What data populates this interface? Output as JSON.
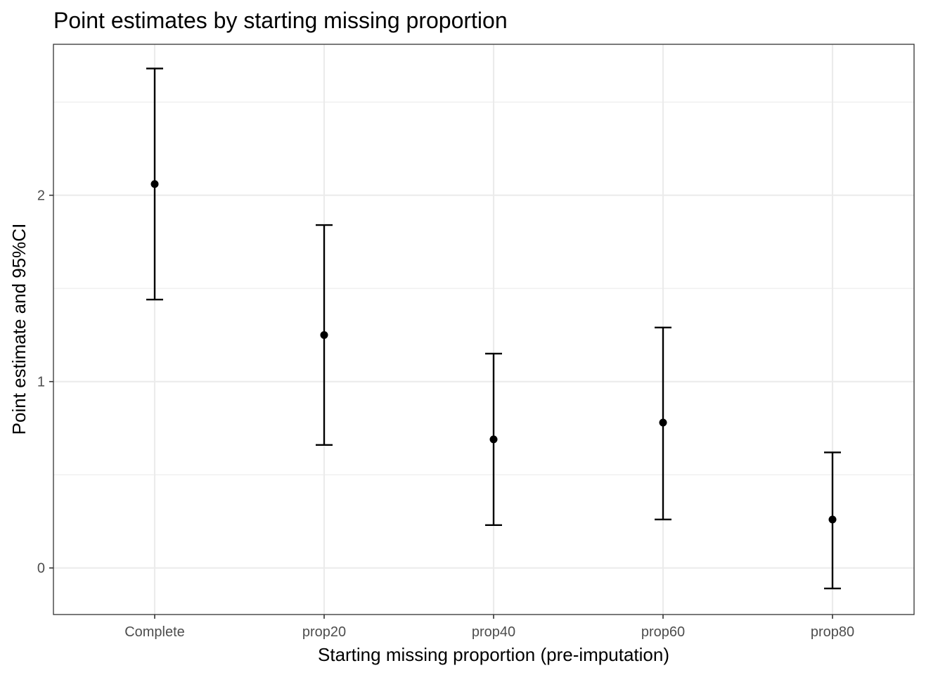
{
  "chart_data": {
    "type": "scatter",
    "title": "Point estimates by starting missing proportion",
    "xlabel": "Starting missing proportion (pre-imputation)",
    "ylabel": "Point estimate and 95%CI",
    "categories": [
      "Complete",
      "prop20",
      "prop40",
      "prop60",
      "prop80"
    ],
    "estimate": [
      2.06,
      1.25,
      0.69,
      0.78,
      0.26
    ],
    "ci_lower": [
      1.44,
      0.66,
      0.23,
      0.26,
      -0.11
    ],
    "ci_upper": [
      2.68,
      1.84,
      1.15,
      1.29,
      0.62
    ],
    "yticks": [
      0,
      1,
      2
    ],
    "ylim": [
      -0.25,
      2.81
    ],
    "grid": true,
    "colors": {
      "points": "#000000",
      "grid": "#ebebeb",
      "text": "#4d4d4d"
    }
  }
}
